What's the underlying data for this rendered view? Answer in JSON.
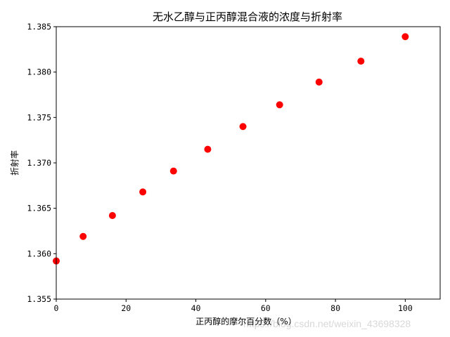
{
  "chart_data": {
    "type": "scatter",
    "title": "无水乙醇与正丙醇混合液的浓度与折射率",
    "xlabel": "正丙醇的摩尔百分数（%）",
    "ylabel": "折射率",
    "xlim": [
      0,
      110
    ],
    "ylim": [
      1.355,
      1.385
    ],
    "xticks": [
      0,
      20,
      40,
      60,
      80,
      100
    ],
    "yticks": [
      1.355,
      1.36,
      1.365,
      1.37,
      1.375,
      1.38,
      1.385
    ],
    "xtick_labels": [
      "0",
      "20",
      "40",
      "60",
      "80",
      "100"
    ],
    "ytick_labels": [
      "1.355",
      "1.360",
      "1.365",
      "1.370",
      "1.375",
      "1.380",
      "1.385"
    ],
    "marker_color": "#ff0000",
    "points": [
      {
        "x": 0,
        "y": 1.3592
      },
      {
        "x": 7.7,
        "y": 1.3619
      },
      {
        "x": 16.1,
        "y": 1.3642
      },
      {
        "x": 24.8,
        "y": 1.3668
      },
      {
        "x": 33.6,
        "y": 1.3691
      },
      {
        "x": 43.4,
        "y": 1.3715
      },
      {
        "x": 53.5,
        "y": 1.374
      },
      {
        "x": 64.0,
        "y": 1.3764
      },
      {
        "x": 75.3,
        "y": 1.3789
      },
      {
        "x": 87.3,
        "y": 1.3812
      },
      {
        "x": 100,
        "y": 1.3839
      }
    ],
    "grid": false,
    "legend": "none"
  },
  "watermark": "https://blog.csdn.net/weixin_43698328"
}
